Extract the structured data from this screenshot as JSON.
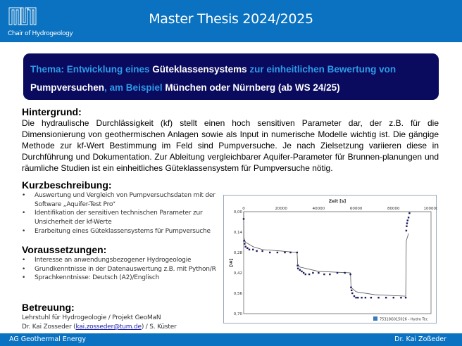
{
  "header": {
    "title": "Master Thesis 2024/2025",
    "chair": "Chair of Hydrogeology",
    "logo_text": "TUM"
  },
  "topic": {
    "p1": "Thema: Entwicklung eines ",
    "p2": "Güteklassensystems",
    "p3": " zur einheitlichen Bewertung von",
    "p4": "Pumpversuchen",
    "p5": ", am Beispiel ",
    "p6": "München oder Nürnberg (ab WS 24/25)"
  },
  "hintergrund": {
    "heading": "Hintergrund:",
    "text": "Die hydraulische Durchlässigkeit (kf) stellt einen hoch sensitiven Parameter dar, der z.B. für die Dimensionierung von geothermischen Anlagen sowie als Input in numerische Modelle wichtig ist. Die gängige Methode zur kf-Wert Bestimmung im Feld sind Pumpversuche. Je nach Zielsetzung variieren diese in Durchführung und Dokumentation. Zur Ableitung vergleichbarer Aquifer-Parameter für Brunnen-planungen und räumliche Studien ist ein einheitliches Güteklassensystem für Pumpversuche nötig."
  },
  "kurz": {
    "heading": "Kurzbeschreibung:",
    "items": [
      "Auswertung und Vergleich von Pumpversuchsdaten mit der Software „Aquifer-Test Pro“",
      "Identifikation der sensitiven technischen Parameter zur Unsicherheit der kf-Werte",
      "Erarbeitung eines Güteklassensystems für Pumpversuche"
    ]
  },
  "vor": {
    "heading": "Voraussetzungen:",
    "items": [
      "Interesse an anwendungsbezogener Hydrogeologie",
      "Grundkenntnisse in der Datenauswertung z.B. mit Python/R",
      "Sprachkenntnisse: Deutsch (A2)/Englisch"
    ]
  },
  "bet": {
    "heading": "Betreuung:",
    "line1": "Lehrstuhl für Hydrogeologie / Projekt GeoMaN",
    "line2a": "Dr. Kai Zosseder (",
    "email": "kai.zosseder@tum.de",
    "line2b": ") / S. Küster"
  },
  "chart_data": {
    "type": "scatter",
    "xlabel": "Zeit [s]",
    "ylabel": "[m]",
    "xlim": [
      0,
      100000
    ],
    "ylim": [
      0,
      0.7
    ],
    "y_inverted": true,
    "xticks": [
      "0",
      "20000",
      "40000",
      "60000",
      "80000",
      "100000"
    ],
    "yticks": [
      "0,00",
      "0,14",
      "0,28",
      "0,42",
      "0,56",
      "0,70"
    ],
    "legend": "75318G015026 - Hydro Tec",
    "marker_color": "#1a1a5e",
    "line_color": "#555555",
    "observed": [
      [
        0,
        0.05
      ],
      [
        200,
        0.2
      ],
      [
        500,
        0.22
      ],
      [
        1000,
        0.24
      ],
      [
        2000,
        0.25
      ],
      [
        3000,
        0.26
      ],
      [
        5000,
        0.26
      ],
      [
        7000,
        0.27
      ],
      [
        10000,
        0.27
      ],
      [
        14000,
        0.28
      ],
      [
        18000,
        0.28
      ],
      [
        22000,
        0.28
      ],
      [
        25000,
        0.28
      ],
      [
        28500,
        0.28
      ],
      [
        28800,
        0.37
      ],
      [
        29000,
        0.39
      ],
      [
        30000,
        0.4
      ],
      [
        31000,
        0.41
      ],
      [
        32000,
        0.42
      ],
      [
        33000,
        0.43
      ],
      [
        35000,
        0.43
      ],
      [
        37000,
        0.42
      ],
      [
        40000,
        0.42
      ],
      [
        43000,
        0.43
      ],
      [
        46000,
        0.43
      ],
      [
        50000,
        0.42
      ],
      [
        54000,
        0.42
      ],
      [
        57000,
        0.43
      ],
      [
        57300,
        0.52
      ],
      [
        57600,
        0.54
      ],
      [
        58000,
        0.56
      ],
      [
        59000,
        0.58
      ],
      [
        60000,
        0.59
      ],
      [
        61000,
        0.59
      ],
      [
        63000,
        0.59
      ],
      [
        65000,
        0.59
      ],
      [
        68000,
        0.59
      ],
      [
        72000,
        0.59
      ],
      [
        76000,
        0.59
      ],
      [
        80000,
        0.59
      ],
      [
        84000,
        0.59
      ],
      [
        86500,
        0.59
      ],
      [
        86800,
        0.13
      ],
      [
        87000,
        0.1
      ],
      [
        87200,
        0.08
      ],
      [
        87500,
        0.06
      ],
      [
        88000,
        0.04
      ],
      [
        88500,
        0.01
      ]
    ],
    "model": [
      [
        0,
        0
      ],
      [
        100,
        0.18
      ],
      [
        1000,
        0.21
      ],
      [
        5000,
        0.24
      ],
      [
        10000,
        0.26
      ],
      [
        20000,
        0.27
      ],
      [
        28500,
        0.28
      ],
      [
        28800,
        0.36
      ],
      [
        30000,
        0.38
      ],
      [
        40000,
        0.41
      ],
      [
        57000,
        0.42
      ],
      [
        57300,
        0.52
      ],
      [
        60000,
        0.55
      ],
      [
        70000,
        0.57
      ],
      [
        86500,
        0.58
      ],
      [
        86800,
        0.2
      ],
      [
        88000,
        0.15
      ]
    ]
  },
  "footer": {
    "left": "AG Geothermal Energy",
    "right": "Dr. Kai Zoßeder"
  }
}
